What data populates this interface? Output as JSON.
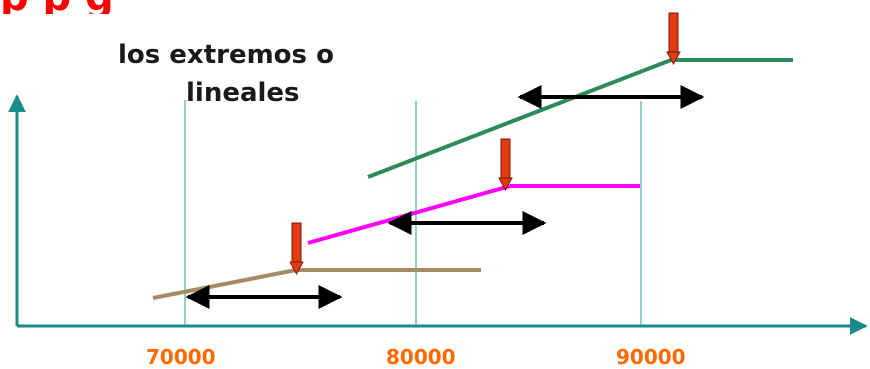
{
  "header": {
    "partial_title": "p            p                      g"
  },
  "note": {
    "line1": "los extremos o",
    "line2": "lineales"
  },
  "axis": {
    "ticks": [
      "70000",
      "80000",
      "90000"
    ]
  },
  "colors": {
    "axis": "#1a8a8a",
    "green_line": "#2e8b57",
    "magenta_line": "#ff00ff",
    "brown_line": "#a68a64",
    "marker": "#e23a12",
    "arrow": "#000000",
    "tick_text": "#ff6a00",
    "title_text": "#ff0000"
  }
}
